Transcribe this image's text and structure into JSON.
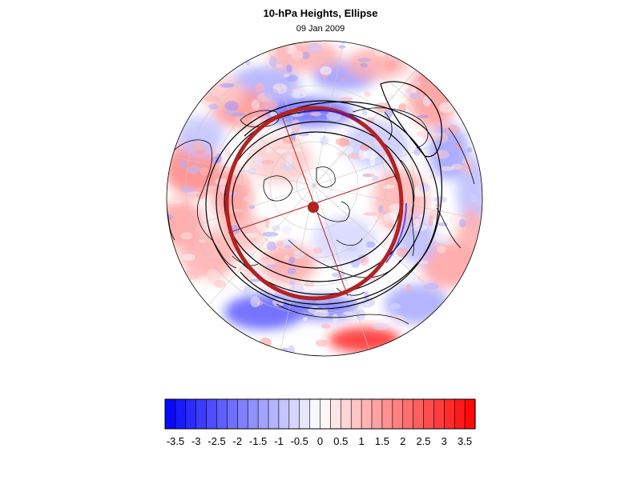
{
  "title": "10-hPa Heights, Ellipse",
  "subtitle": "09 Jan 2009",
  "colorbar": {
    "min": -3.75,
    "max": 3.75,
    "step": 0.25,
    "negative_color": "#0000ff",
    "neutral_color": "#ffffff",
    "positive_color": "#ff0000",
    "tick_labels": [
      "-3.5",
      "-3",
      "-2.5",
      "-2",
      "-1.5",
      "-1",
      "-0.5",
      "0",
      "0.5",
      "1",
      "1.5",
      "2",
      "2.5",
      "3",
      "3.5"
    ]
  },
  "map": {
    "projection": "polar-stereographic-north",
    "ellipse_color": "#b22222",
    "center_marker_color": "#b22222"
  }
}
